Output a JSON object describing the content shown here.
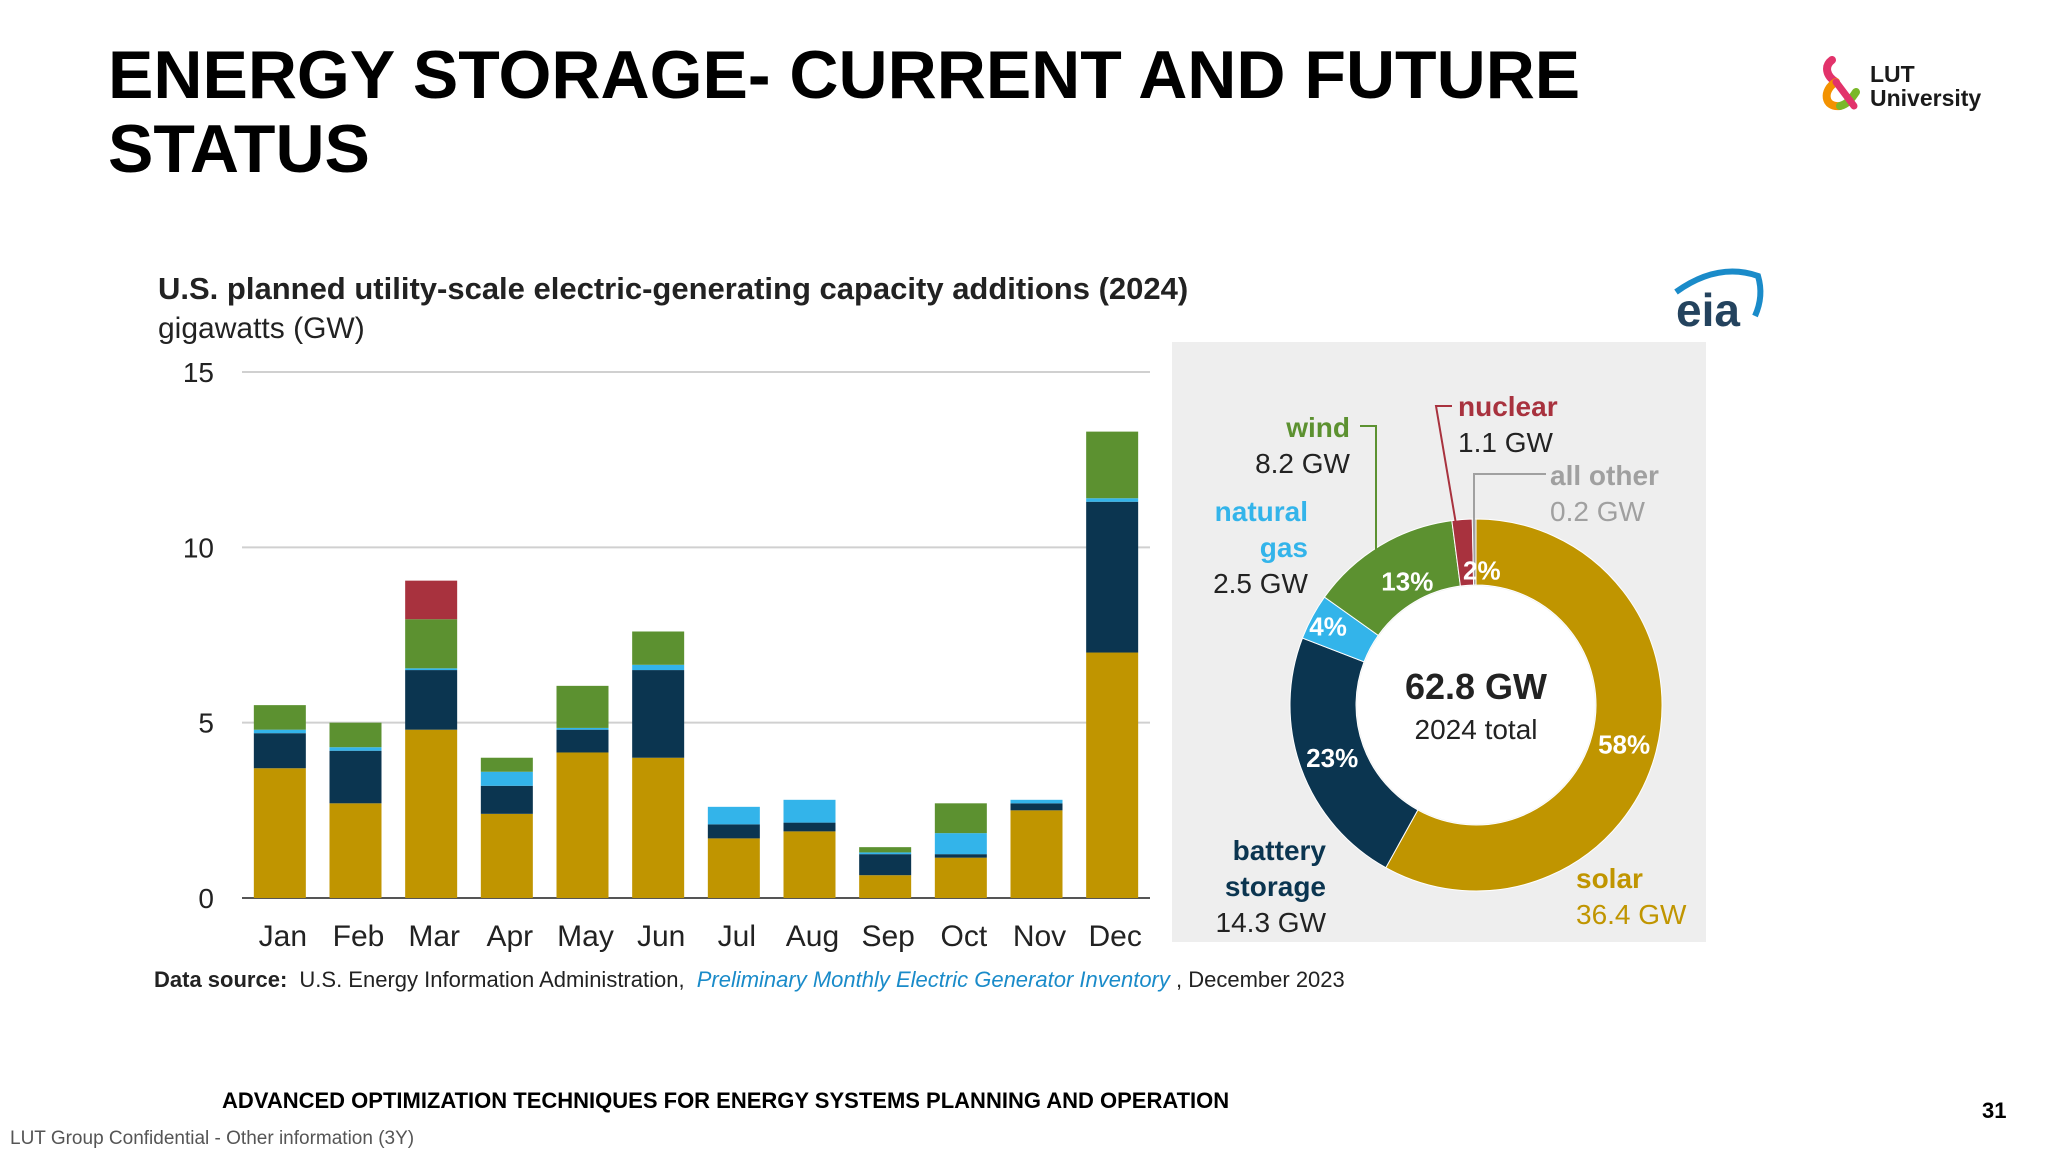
{
  "slide": {
    "title_line1": "ENERGY STORAGE- CURRENT AND FUTURE",
    "title_line2": "STATUS",
    "logo_line1": "LUT",
    "logo_line2": "University",
    "footer_course": "ADVANCED OPTIMIZATION TECHNIQUES FOR ENERGY SYSTEMS PLANNING AND OPERATION",
    "page_number": "31",
    "confidential": "LUT Group Confidential - Other information (3Y)"
  },
  "chart_data": [
    {
      "type": "bar",
      "stacked": true,
      "title": "U.S. planned utility-scale electric-generating capacity additions (2024)",
      "subtitle": "gigawatts (GW)",
      "brand": "eia",
      "categories": [
        "Jan",
        "Feb",
        "Mar",
        "Apr",
        "May",
        "Jun",
        "Jul",
        "Aug",
        "Sep",
        "Oct",
        "Nov",
        "Dec"
      ],
      "yticks": [
        0,
        5,
        10,
        15
      ],
      "ylim": [
        0,
        15
      ],
      "grid": true,
      "series": [
        {
          "key": "solar",
          "color": "#c09500",
          "values": [
            3.7,
            2.7,
            4.8,
            2.4,
            4.15,
            4.0,
            1.7,
            1.9,
            0.65,
            1.15,
            2.5,
            7.0
          ]
        },
        {
          "key": "battery",
          "color": "#0b3550",
          "values": [
            1.0,
            1.5,
            1.7,
            0.8,
            0.65,
            2.5,
            0.4,
            0.25,
            0.6,
            0.1,
            0.2,
            4.3
          ]
        },
        {
          "key": "gas",
          "color": "#33b4ea",
          "values": [
            0.1,
            0.1,
            0.05,
            0.4,
            0.05,
            0.15,
            0.5,
            0.65,
            0.05,
            0.6,
            0.1,
            0.1
          ]
        },
        {
          "key": "wind",
          "color": "#5c9130",
          "values": [
            0.7,
            0.7,
            1.4,
            0.4,
            1.2,
            0.95,
            0.0,
            0.0,
            0.15,
            0.85,
            0.0,
            1.9
          ]
        },
        {
          "key": "nuclear",
          "color": "#a8323e",
          "values": [
            0,
            0,
            1.1,
            0,
            0,
            0,
            0,
            0,
            0,
            0,
            0,
            0
          ]
        }
      ],
      "source_label": "Data source:",
      "source_text": "U.S. Energy Information Administration,",
      "source_link": "Preliminary Monthly Electric Generator Inventory",
      "source_date": ", December 2023"
    },
    {
      "type": "pie",
      "donut": true,
      "center_value": "62.8 GW",
      "center_label": "2024 total",
      "slices": [
        {
          "key": "solar",
          "name_lines": [
            "solar"
          ],
          "gw_label": "36.4 GW",
          "value": 36.4,
          "pct_label": "58%",
          "color": "#c09500"
        },
        {
          "key": "battery",
          "name_lines": [
            "battery",
            "storage"
          ],
          "gw_label": "14.3 GW",
          "value": 14.3,
          "pct_label": "23%",
          "color": "#0b3550"
        },
        {
          "key": "gas",
          "name_lines": [
            "natural",
            "gas"
          ],
          "gw_label": "2.5 GW",
          "value": 2.5,
          "pct_label": "4%",
          "color": "#33b4ea"
        },
        {
          "key": "wind",
          "name_lines": [
            "wind"
          ],
          "gw_label": "8.2 GW",
          "value": 8.2,
          "pct_label": "13%",
          "color": "#5c9130"
        },
        {
          "key": "nuclear",
          "name_lines": [
            "nuclear"
          ],
          "gw_label": "1.1 GW",
          "value": 1.1,
          "pct_label": "2%",
          "color": "#a8323e"
        },
        {
          "key": "other",
          "name_lines": [
            "all other"
          ],
          "gw_label": "0.2 GW",
          "value": 0.2,
          "pct_label": "",
          "color": "#a0a0a0"
        }
      ]
    }
  ],
  "colors": {
    "panel_bg": "#eeeeee",
    "grid": "#d0d0d0",
    "axis": "#555555",
    "text": "#222222",
    "link": "#1a8bc9",
    "other_label": "#a0a0a0"
  }
}
